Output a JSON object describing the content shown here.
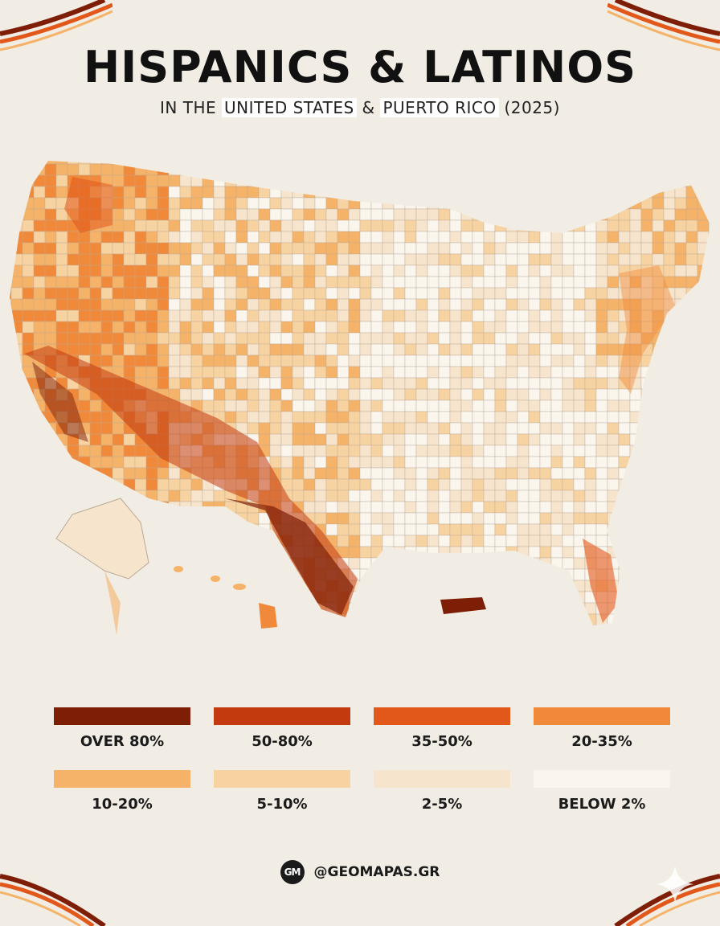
{
  "title": "HISPANICS & LATINOS",
  "subtitle": {
    "prefix": "IN THE",
    "highlight_1": "UNITED STATES",
    "middle": "&",
    "highlight_2": "PUERTO RICO",
    "suffix": "(2025)"
  },
  "legend": [
    {
      "label": "OVER 80%",
      "color": "#7e1e07"
    },
    {
      "label": "50-80%",
      "color": "#c33a0e"
    },
    {
      "label": "35-50%",
      "color": "#e2581a"
    },
    {
      "label": "20-35%",
      "color": "#f08a3a"
    },
    {
      "label": "10-20%",
      "color": "#f5b36a"
    },
    {
      "label": "5-10%",
      "color": "#f8d3a2"
    },
    {
      "label": "2-5%",
      "color": "#f6e4cc"
    },
    {
      "label": "BELOW 2%",
      "color": "#faf6ee"
    }
  ],
  "map_regions": {
    "southwest_border": "OVER 80%",
    "south_texas": "OVER 80%",
    "california_south": "50-80%",
    "new_mexico": "50-80%",
    "west_texas": "50-80%",
    "arizona": "35-50%",
    "central_texas": "35-50%",
    "colorado": "20-35%",
    "nevada": "20-35%",
    "washington_central": "35-50%",
    "pacific_northwest": "10-20%",
    "great_plains": "5-10%",
    "upper_midwest": "BELOW 2%",
    "appalachia": "BELOW 2%",
    "southeast": "2-5%",
    "florida_south": "50-80%",
    "northeast_corridor": "20-35%",
    "alaska": "5-10%",
    "hawaii": "10-20%",
    "puerto_rico": "OVER 80%"
  },
  "credit": {
    "logo_text": "GM",
    "handle": "@GEOMAPAS.GR"
  },
  "accent_colors": {
    "swoosh_dark": "#7e1e07",
    "swoosh_light": "#e2581a",
    "background": "#f1ede4"
  }
}
